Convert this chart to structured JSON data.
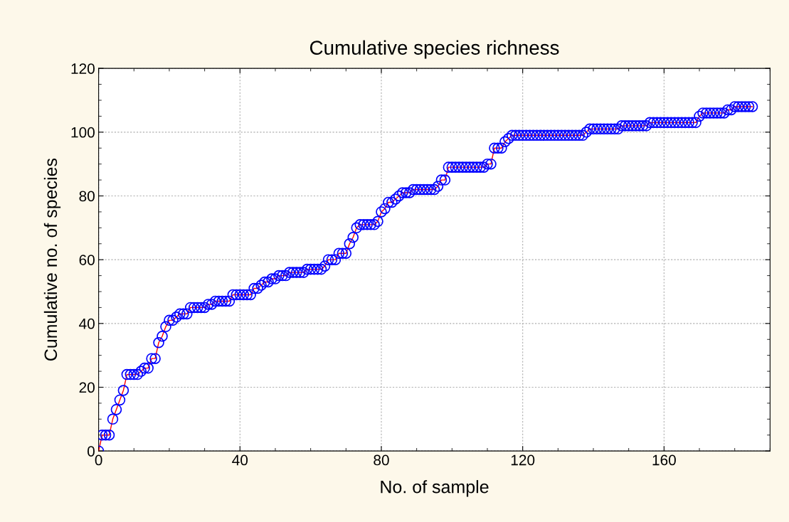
{
  "chart_data": {
    "type": "line",
    "title": "Cumulative species richness",
    "xlabel": "No. of sample",
    "ylabel": "Cumulative no. of species",
    "x": [
      0,
      1,
      2,
      3,
      4,
      5,
      6,
      7,
      8,
      9,
      10,
      11,
      12,
      13,
      14,
      15,
      16,
      17,
      18,
      19,
      20,
      21,
      22,
      23,
      24,
      25,
      26,
      27,
      28,
      29,
      30,
      31,
      32,
      33,
      34,
      35,
      36,
      37,
      38,
      39,
      40,
      41,
      42,
      43,
      44,
      45,
      46,
      47,
      48,
      49,
      50,
      51,
      52,
      53,
      54,
      55,
      56,
      57,
      58,
      59,
      60,
      61,
      62,
      63,
      64,
      65,
      66,
      67,
      68,
      69,
      70,
      71,
      72,
      73,
      74,
      75,
      76,
      77,
      78,
      79,
      80,
      81,
      82,
      83,
      84,
      85,
      86,
      87,
      88,
      89,
      90,
      91,
      92,
      93,
      94,
      95,
      96,
      97,
      98,
      99,
      100,
      101,
      102,
      103,
      104,
      105,
      106,
      107,
      108,
      109,
      110,
      111,
      112,
      113,
      114,
      115,
      116,
      117,
      118,
      119,
      120,
      121,
      122,
      123,
      124,
      125,
      126,
      127,
      128,
      129,
      130,
      131,
      132,
      133,
      134,
      135,
      136,
      137,
      138,
      139,
      140,
      141,
      142,
      143,
      144,
      145,
      146,
      147,
      148,
      149,
      150,
      151,
      152,
      153,
      154,
      155,
      156,
      157,
      158,
      159,
      160,
      161,
      162,
      163,
      164,
      165,
      166,
      167,
      168,
      169,
      170,
      171,
      172,
      173,
      174,
      175,
      176,
      177,
      178,
      179,
      180,
      181,
      182,
      183,
      184,
      185
    ],
    "series": [
      {
        "color": "#0000ff",
        "values": [
          0,
          5,
          5,
          5,
          10,
          13,
          16,
          19,
          24,
          24,
          24,
          24,
          25,
          26,
          26,
          29,
          29,
          34,
          36,
          39,
          41,
          41,
          42,
          43,
          43,
          43,
          45,
          45,
          45,
          45,
          45,
          46,
          46,
          47,
          47,
          47,
          47,
          47,
          49,
          49,
          49,
          49,
          49,
          49,
          51,
          51,
          52,
          53,
          53,
          54,
          54,
          55,
          55,
          55,
          56,
          56,
          56,
          56,
          56,
          57,
          57,
          57,
          57,
          57,
          58,
          60,
          60,
          60,
          62,
          62,
          62,
          65,
          67,
          70,
          71,
          71,
          71,
          71,
          71,
          72,
          75,
          76,
          78,
          78,
          79,
          80,
          81,
          81,
          81,
          82,
          82,
          82,
          82,
          82,
          82,
          82,
          83,
          85,
          85,
          89,
          89,
          89,
          89,
          89,
          89,
          89,
          89,
          89,
          89,
          89,
          90,
          90,
          95,
          95,
          95,
          97,
          98,
          99,
          99,
          99,
          99,
          99,
          99,
          99,
          99,
          99,
          99,
          99,
          99,
          99,
          99,
          99,
          99,
          99,
          99,
          99,
          99,
          99,
          100,
          101,
          101,
          101,
          101,
          101,
          101,
          101,
          101,
          101,
          102,
          102,
          102,
          102,
          102,
          102,
          102,
          102,
          103,
          103,
          103,
          103,
          103,
          103,
          103,
          103,
          103,
          103,
          103,
          103,
          103,
          103,
          105,
          106,
          106,
          106,
          106,
          106,
          106,
          106,
          107,
          107,
          108,
          108,
          108,
          108,
          108,
          108
        ]
      }
    ],
    "xlim": [
      0,
      190
    ],
    "xticks": [
      0,
      40,
      80,
      120,
      160
    ],
    "ylim": [
      0,
      120
    ],
    "yticks": [
      0,
      20,
      40,
      60,
      80,
      100,
      120
    ],
    "grid": true,
    "marker": "circle",
    "line_style": "solid",
    "legend": false
  }
}
